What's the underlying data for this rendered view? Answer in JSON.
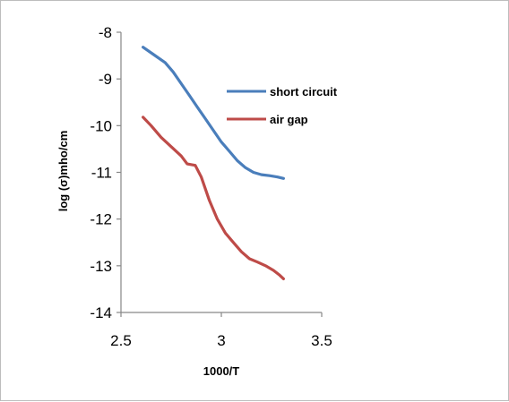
{
  "chart_data": {
    "type": "line",
    "title": "",
    "xlabel": "1000/T",
    "ylabel": "log (σ)mho/cm",
    "xlim": [
      2.5,
      3.5
    ],
    "ylim": [
      -14,
      -8
    ],
    "xticks": [
      "2.5",
      "3",
      "3.5"
    ],
    "yticks": [
      "-8",
      "-9",
      "-10",
      "-11",
      "-12",
      "-13",
      "-14"
    ],
    "grid": false,
    "legend_position": "right-inside",
    "series": [
      {
        "name": "short circuit",
        "color": "#4a7ebb",
        "x": [
          2.61,
          2.66,
          2.72,
          2.76,
          2.8,
          2.84,
          2.88,
          2.92,
          2.96,
          3.0,
          3.04,
          3.08,
          3.12,
          3.16,
          3.2,
          3.24,
          3.28,
          3.31
        ],
        "y": [
          -8.32,
          -8.47,
          -8.65,
          -8.85,
          -9.1,
          -9.35,
          -9.6,
          -9.85,
          -10.1,
          -10.35,
          -10.55,
          -10.75,
          -10.9,
          -11.0,
          -11.05,
          -11.07,
          -11.1,
          -11.13
        ]
      },
      {
        "name": "air gap",
        "color": "#be4b48",
        "x": [
          2.61,
          2.65,
          2.7,
          2.75,
          2.8,
          2.83,
          2.87,
          2.9,
          2.94,
          2.98,
          3.02,
          3.06,
          3.1,
          3.14,
          3.18,
          3.22,
          3.26,
          3.29,
          3.31
        ],
        "y": [
          -9.82,
          -10.0,
          -10.25,
          -10.45,
          -10.65,
          -10.82,
          -10.85,
          -11.1,
          -11.6,
          -12.0,
          -12.3,
          -12.5,
          -12.7,
          -12.85,
          -12.92,
          -13.0,
          -13.1,
          -13.2,
          -13.28
        ]
      }
    ]
  }
}
